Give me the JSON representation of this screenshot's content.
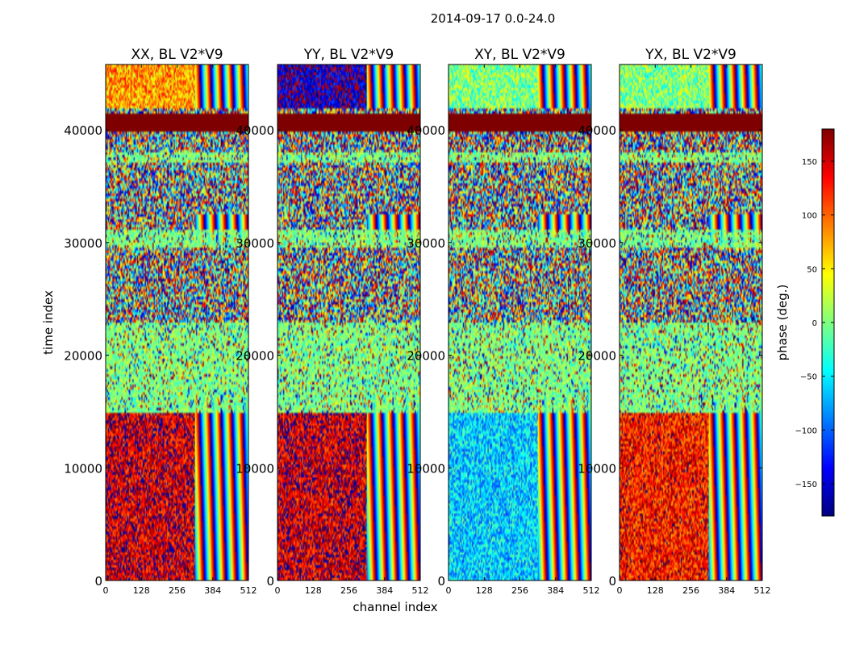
{
  "figure": {
    "suptitle": "2014-09-17 0.0-24.0"
  },
  "chart_data": {
    "type": "heatmap",
    "title": "2014-09-17 0.0-24.0",
    "xlabel": "channel index",
    "ylabel": "time index",
    "xlim": [
      0,
      512
    ],
    "ylim": [
      0,
      45800
    ],
    "xticks": [
      0,
      128,
      256,
      384,
      512
    ],
    "xtick_labels": [
      "0",
      "128",
      "256",
      "384",
      "512"
    ],
    "yticks": [
      0,
      10000,
      20000,
      30000,
      40000
    ],
    "ytick_labels": [
      "0",
      "10000",
      "20000",
      "30000",
      "40000"
    ],
    "colorbar": {
      "label": "phase (deg.)",
      "range": [
        -180,
        180
      ],
      "ticks": [
        150,
        100,
        50,
        0,
        -50,
        -100,
        -150
      ],
      "tick_labels": [
        "150",
        "100",
        "50",
        "0",
        "−50",
        "−100",
        "−150"
      ],
      "colormap": [
        "#00007f",
        "#0000ff",
        "#007fff",
        "#00ffff",
        "#7fff7f",
        "#ffff00",
        "#ff7f00",
        "#ff0000",
        "#7f0000"
      ]
    },
    "panels": [
      {
        "title": "XX, BL V2*V9",
        "base_phase_low_time": 150,
        "base_phase_mid_time": 0,
        "base_phase_high_time": 80,
        "fringe_start_channel": 320
      },
      {
        "title": "YY, BL V2*V9",
        "base_phase_low_time": 150,
        "base_phase_mid_time": 0,
        "base_phase_high_time": -160,
        "fringe_start_channel": 320
      },
      {
        "title": "XY, BL V2*V9",
        "base_phase_low_time": -60,
        "base_phase_mid_time": 0,
        "base_phase_high_time": 0,
        "fringe_start_channel": 320
      },
      {
        "title": "YX, BL V2*V9",
        "base_phase_low_time": 130,
        "base_phase_mid_time": 0,
        "base_phase_high_time": 0,
        "fringe_start_channel": 320
      }
    ],
    "flagged_rows": [
      {
        "t0": 39900,
        "t1": 41500,
        "phase": 180
      }
    ]
  }
}
